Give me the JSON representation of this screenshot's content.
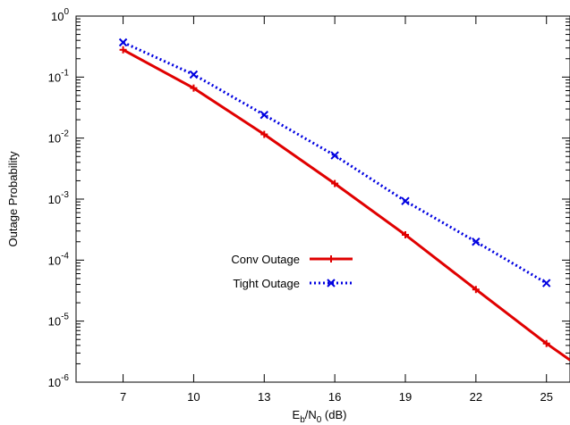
{
  "chart_data": {
    "type": "line",
    "title": "",
    "xlabel": {
      "base": "E",
      "sub1": "b",
      "mid": "/N",
      "sub2": "0",
      "tail": " (dB)"
    },
    "ylabel": "Outage Probability",
    "xlim": [
      5,
      26
    ],
    "ylim": [
      1e-06,
      1
    ],
    "yscale": "log",
    "grid": false,
    "legend_position": "center-left",
    "x_ticks": [
      7,
      10,
      13,
      16,
      19,
      22,
      25
    ],
    "y_ticks": [
      {
        "value": 1e-06,
        "base": "10",
        "exp": "-6"
      },
      {
        "value": 1e-05,
        "base": "10",
        "exp": "-5"
      },
      {
        "value": 0.0001,
        "base": "10",
        "exp": "-4"
      },
      {
        "value": 0.001,
        "base": "10",
        "exp": "-3"
      },
      {
        "value": 0.01,
        "base": "10",
        "exp": "-2"
      },
      {
        "value": 0.1,
        "base": "10",
        "exp": "-1"
      },
      {
        "value": 1,
        "base": "10",
        "exp": "0"
      }
    ],
    "series": [
      {
        "name": "Conv Outage",
        "color": "#e00000",
        "style": "solid",
        "marker": "plus",
        "x": [
          7,
          10,
          13,
          16,
          19,
          22,
          25
        ],
        "values": [
          0.28,
          0.066,
          0.0115,
          0.0018,
          0.00026,
          3.3e-05,
          4.3e-06
        ],
        "line_end": {
          "x": 26,
          "y": 2.3e-06
        }
      },
      {
        "name": "Tight Outage",
        "color": "#0000e0",
        "style": "dotted",
        "marker": "cross",
        "x": [
          7,
          10,
          13,
          16,
          19,
          22,
          25
        ],
        "values": [
          0.37,
          0.11,
          0.024,
          0.0052,
          0.00093,
          0.0002,
          4.2e-05
        ]
      }
    ]
  }
}
